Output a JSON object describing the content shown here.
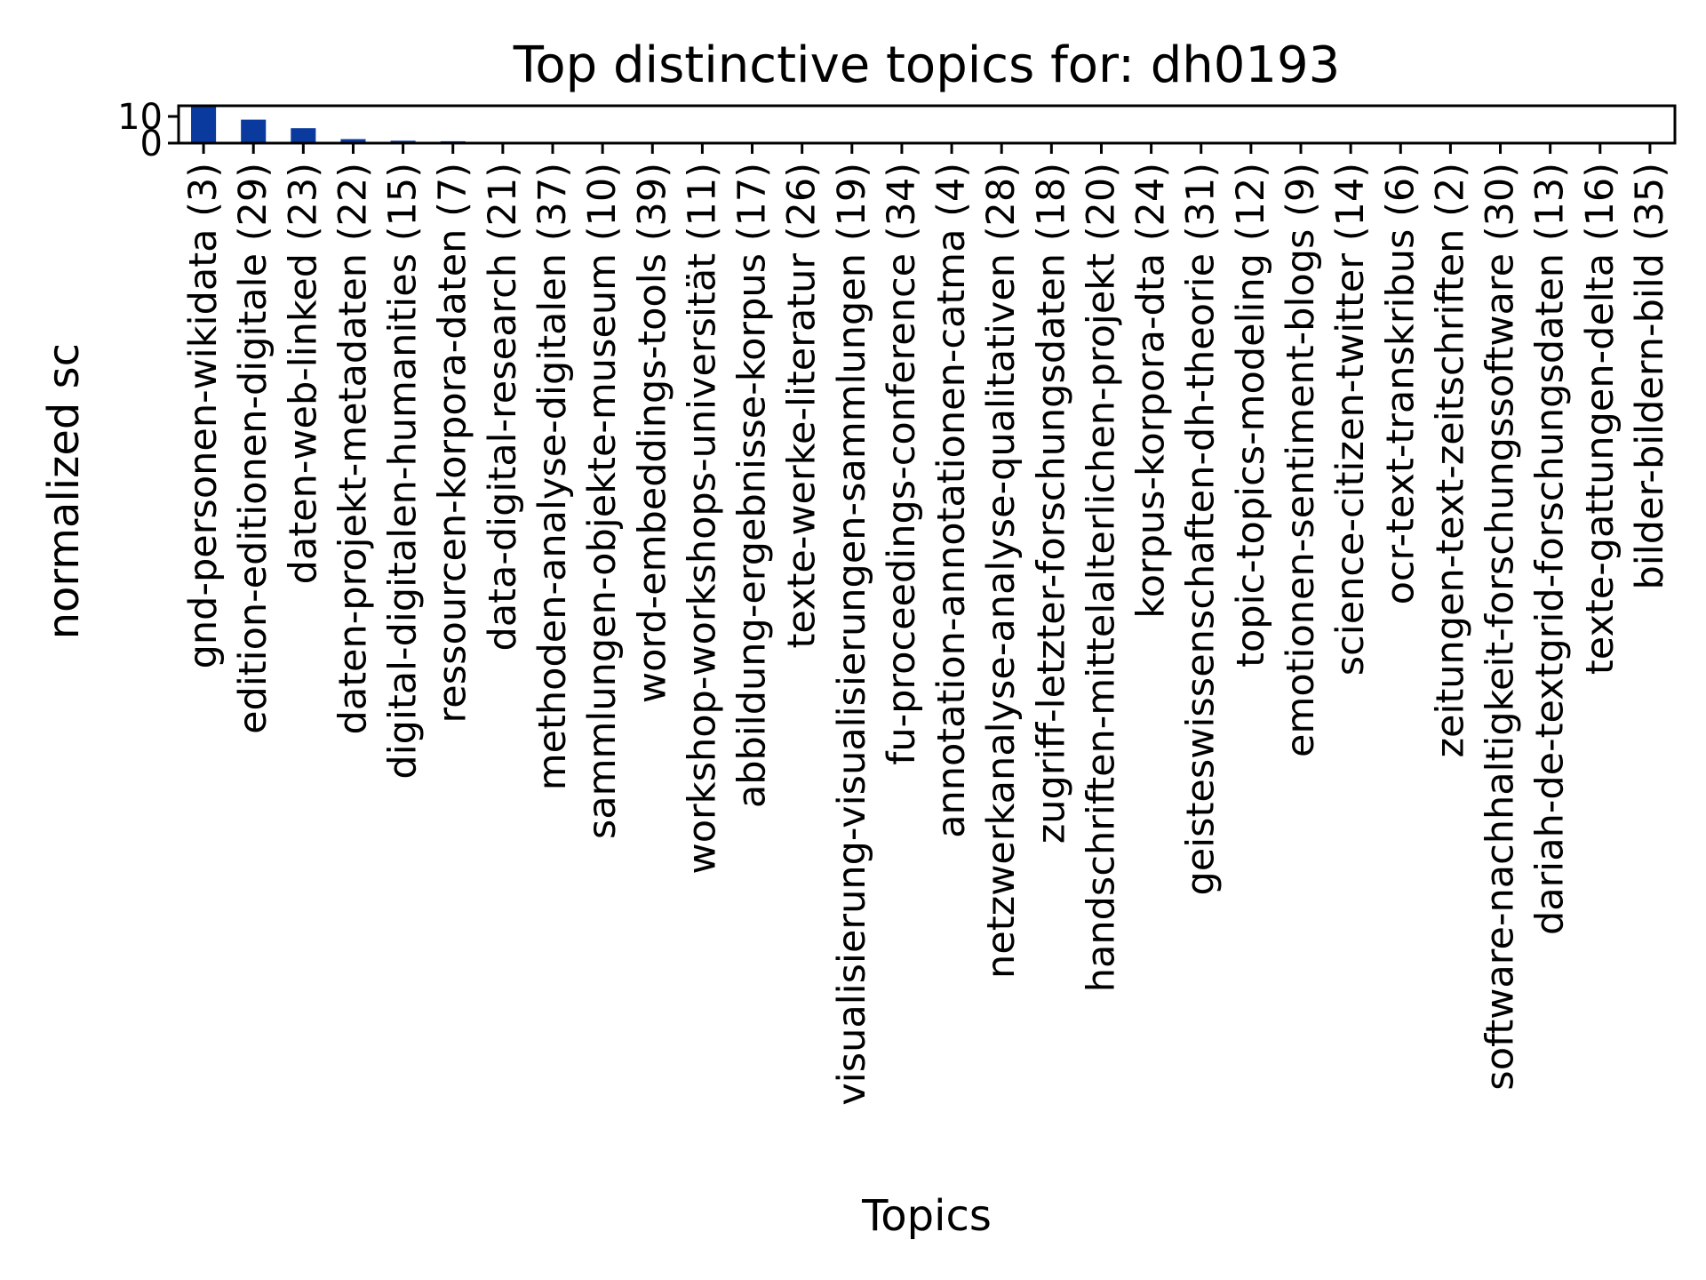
{
  "chart_data": {
    "type": "bar",
    "title": "Top distinctive topics for: dh0193",
    "xlabel": "Topics",
    "ylabel": "normalized sc",
    "ylim": [
      0,
      14
    ],
    "yticks": [
      0,
      10
    ],
    "grid": false,
    "legend": "none",
    "bar_color": "#0a3a9e",
    "categories": [
      "gnd-personen-wikidata (3)",
      "edition-editionen-digitale (29)",
      "daten-web-linked (23)",
      "daten-projekt-metadaten (22)",
      "digital-digitalen-humanities (15)",
      "ressourcen-korpora-daten (7)",
      "data-digital-research (21)",
      "methoden-analyse-digitalen (37)",
      "sammlungen-objekte-museum (10)",
      "word-embeddings-tools (39)",
      "workshop-workshops-universität (11)",
      "abbildung-ergebnisse-korpus (17)",
      "texte-werke-literatur (26)",
      "visualisierung-visualisierungen-sammlungen (19)",
      "fu-proceedings-conference (34)",
      "annotation-annotationen-catma (4)",
      "netzwerkanalyse-analyse-qualitativen (28)",
      "zugriff-letzter-forschungsdaten (18)",
      "handschriften-mittelalterlichen-projekt (20)",
      "korpus-korpora-dta (24)",
      "geisteswissenschaften-dh-theorie (31)",
      "topic-topics-modeling (12)",
      "emotionen-sentiment-blogs (9)",
      "science-citizen-twitter (14)",
      "ocr-text-transkribus (6)",
      "zeitungen-text-zeitschriften (2)",
      "software-nachhaltigkeit-forschungssoftware (30)",
      "dariah-de-textgrid-forschungsdaten (13)",
      "texte-gattungen-delta (16)",
      "bilder-bildern-bild (35)"
    ],
    "values": [
      14.5,
      8.8,
      5.6,
      1.5,
      0.9,
      0.7,
      0.4,
      0.05,
      0.04,
      0.03,
      0.03,
      0.02,
      0.02,
      0.02,
      0.02,
      0.01,
      0.01,
      0.01,
      0.01,
      0.01,
      0.01,
      0.01,
      0.01,
      0.01,
      0.01,
      0.0,
      0.0,
      0.0,
      0.0,
      0.0
    ]
  }
}
